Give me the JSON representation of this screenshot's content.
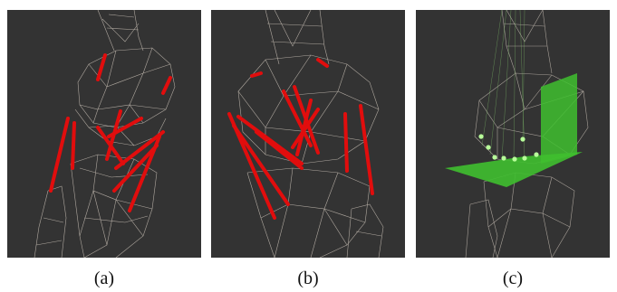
{
  "figure": {
    "panels": [
      {
        "caption": "(a)",
        "content": "knee-wireframe-with-ligaments-view-1"
      },
      {
        "caption": "(b)",
        "content": "knee-wireframe-with-ligaments-view-2"
      },
      {
        "caption": "(c)",
        "content": "knee-wireframe-with-planes-and-points"
      }
    ],
    "colors": {
      "panel_background": "#333333",
      "wireframe": "#d9cfc4",
      "ligament": "#e10d0d",
      "plane": "#3fbf2f",
      "marker": "#b8ff9a"
    }
  }
}
